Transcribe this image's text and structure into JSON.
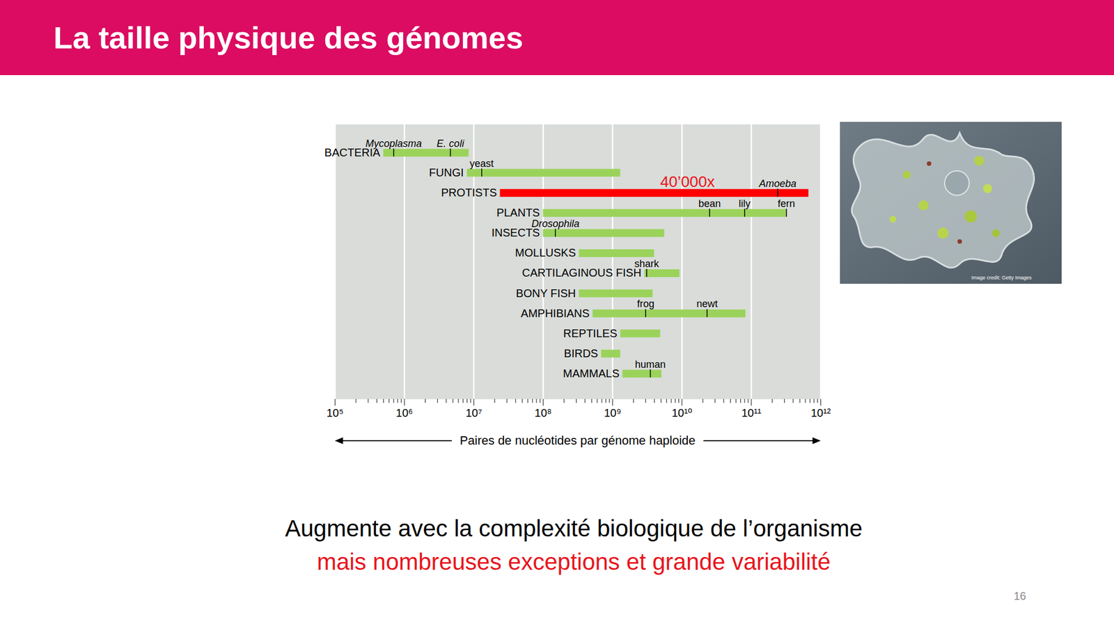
{
  "header": {
    "title": "La taille physique des génomes"
  },
  "chart_data": {
    "type": "range_bar",
    "orientation": "horizontal",
    "log": "x",
    "grid": true,
    "x_label": "Paires de nucléotides par génome haploide",
    "xlim": [
      100000,
      1000000000000
    ],
    "xticks": [
      {
        "value": 100000,
        "label": "10⁵"
      },
      {
        "value": 1000000,
        "label": "10⁶"
      },
      {
        "value": 10000000,
        "label": "10⁷"
      },
      {
        "value": 100000000,
        "label": "10⁸"
      },
      {
        "value": 1000000000,
        "label": "10⁹"
      },
      {
        "value": 10000000000,
        "label": "10¹⁰"
      },
      {
        "value": 100000000000,
        "label": "10¹¹"
      },
      {
        "value": 1000000000000,
        "label": "10¹²"
      }
    ],
    "minor_xticks": [
      200000.0,
      300000.0,
      400000.0,
      500000.0,
      600000.0,
      700000.0,
      800000.0,
      900000.0,
      2000000.0,
      3000000.0,
      4000000.0,
      5000000.0,
      6000000.0,
      7000000.0,
      8000000.0,
      9000000.0,
      20000000.0,
      30000000.0,
      40000000.0,
      50000000.0,
      60000000.0,
      70000000.0,
      80000000.0,
      90000000.0,
      200000000.0,
      300000000.0,
      400000000.0,
      500000000.0,
      600000000.0,
      700000000.0,
      800000000.0,
      900000000.0,
      2000000000.0,
      3000000000.0,
      4000000000.0,
      5000000000.0,
      6000000000.0,
      7000000000.0,
      8000000000.0,
      9000000000.0,
      20000000000.0,
      30000000000.0,
      40000000000.0,
      50000000000.0,
      60000000000.0,
      70000000000.0,
      80000000000.0,
      90000000000.0,
      200000000000.0,
      300000000000.0,
      400000000000.0,
      500000000000.0,
      600000000000.0,
      700000000000.0,
      800000000000.0,
      900000000000.0
    ],
    "categories": [
      "BACTERIA",
      "FUNGI",
      "PROTISTS",
      "PLANTS",
      "INSECTS",
      "MOLLUSKS",
      "CARTILAGINOUS FISH",
      "BONY FISH",
      "AMPHIBIANS",
      "REPTILES",
      "BIRDS",
      "MAMMALS"
    ],
    "starts": [
      500000.0,
      8000000.0,
      24000000.0,
      100000000.0,
      100000000.0,
      330000000.0,
      2900000000.0,
      330000000.0,
      520000000.0,
      1300000000.0,
      690000000.0,
      1400000000.0
    ],
    "ends": [
      8500000.0,
      1300000000.0,
      670000000000.0,
      320000000000.0,
      5600000000.0,
      4000000000.0,
      9300000000.0,
      3800000000.0,
      83000000000.0,
      4900000000.0,
      1300000000.0,
      5100000000.0
    ],
    "colors": [
      "#9bd35a",
      "#9bd35a",
      "#ff0000",
      "#9bd35a",
      "#9bd35a",
      "#9bd35a",
      "#9bd35a",
      "#9bd35a",
      "#9bd35a",
      "#9bd35a",
      "#9bd35a",
      "#9bd35a"
    ],
    "markers": [
      {
        "category": "BACTERIA",
        "x": 700000.0,
        "label": "Mycoplasma",
        "font_style": "italic"
      },
      {
        "category": "BACTERIA",
        "x": 4600000.0,
        "label": "E. coli",
        "font_style": "italic"
      },
      {
        "category": "FUNGI",
        "x": 13000000.0,
        "label": "yeast",
        "font_style": "normal"
      },
      {
        "category": "PROTISTS",
        "x": 240000000000.0,
        "label": "Amoeba",
        "font_style": "italic"
      },
      {
        "category": "PLANTS",
        "x": 25000000000.0,
        "label": "bean",
        "font_style": "normal"
      },
      {
        "category": "PLANTS",
        "x": 80000000000.0,
        "label": "lily",
        "font_style": "normal"
      },
      {
        "category": "PLANTS",
        "x": 320000000000.0,
        "label": "fern",
        "font_style": "normal"
      },
      {
        "category": "INSECTS",
        "x": 150000000.0,
        "label": "Drosophila",
        "font_style": "italic"
      },
      {
        "category": "CARTILAGINOUS FISH",
        "x": 3100000000.0,
        "label": "shark",
        "font_style": "normal"
      },
      {
        "category": "AMPHIBIANS",
        "x": 3000000000.0,
        "label": "frog",
        "font_style": "normal"
      },
      {
        "category": "AMPHIBIANS",
        "x": 23000000000.0,
        "label": "newt",
        "font_style": "normal"
      },
      {
        "category": "MAMMALS",
        "x": 3500000000.0,
        "label": "human",
        "font_style": "normal"
      }
    ],
    "annotations": [
      {
        "category": "PROTISTS",
        "x": 12000000000.0,
        "text": "40’000x",
        "color": "#e8141b"
      }
    ]
  },
  "image": {
    "credit": "Image credit: Getty Images"
  },
  "caption": [
    {
      "text": "Augmente avec la complexité biologique de l’organisme",
      "color": "#000000"
    },
    {
      "text": "mais nombreuses exceptions et grande variabilité",
      "color": "#e8141b"
    }
  ],
  "page_number": 16
}
